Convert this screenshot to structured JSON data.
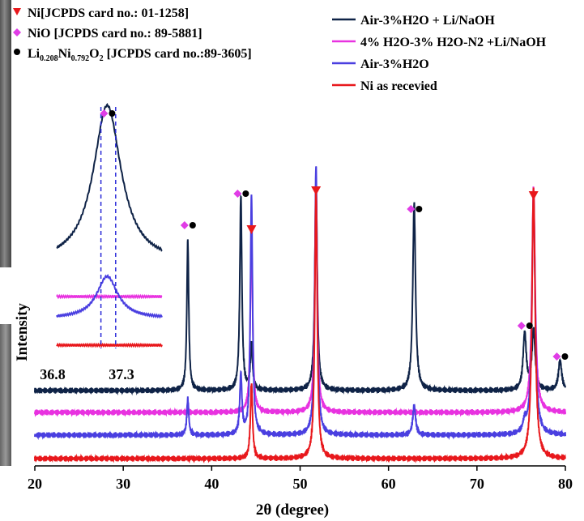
{
  "chart_data": {
    "type": "line",
    "title": "",
    "xlabel": "2θ (degree)",
    "ylabel": "Intensity",
    "xlim": [
      20,
      80
    ],
    "xticks": [
      20,
      30,
      40,
      50,
      60,
      70,
      80
    ],
    "grid": false,
    "legend": {
      "placement": "top-right",
      "entries": [
        {
          "label": "Air-3%H2O + Li/NaOH",
          "color": "#0f2347"
        },
        {
          "label": "4% H2O-3% H2O-N2 +Li/NaOH",
          "color": "#e832e0"
        },
        {
          "label": "Air-3%H2O",
          "color": "#4a3fe0"
        },
        {
          "label": "Ni as recevied",
          "color": "#e8181c"
        }
      ]
    },
    "phase_legend": [
      {
        "marker": "triangle",
        "color": "#e8181c",
        "text": "Ni[JCPDS card no.: 01-1258]"
      },
      {
        "marker": "diamond",
        "color": "#e03ce6",
        "text": "NiO [JCPDS card no.: 89-5881]"
      },
      {
        "marker": "dot",
        "color": "#000000",
        "formula": [
          "Li",
          "0.208",
          "Ni",
          "0.792",
          "O",
          "2"
        ],
        "card": " [JCPDS card no.:89-3605]"
      }
    ],
    "series": [
      {
        "name": "Air-3%H2O + Li/NaOH",
        "color": "#0f2347",
        "peaks": [
          [
            37.3,
            1.0
          ],
          [
            43.3,
            1.3
          ],
          [
            44.5,
            0.3
          ],
          [
            51.8,
            1.4
          ],
          [
            62.9,
            1.25
          ],
          [
            75.4,
            0.38
          ],
          [
            76.4,
            0.4
          ],
          [
            79.4,
            0.2
          ]
        ]
      },
      {
        "name": "4% H2O-3% H2O-N2 +Li/NaOH",
        "color": "#e832e0",
        "peaks": [
          [
            44.5,
            1.25
          ],
          [
            51.8,
            1.5
          ],
          [
            76.4,
            1.5
          ]
        ]
      },
      {
        "name": "Air-3%H2O",
        "color": "#4a3fe0",
        "peaks": [
          [
            37.3,
            0.24
          ],
          [
            43.3,
            0.4
          ],
          [
            44.5,
            1.6
          ],
          [
            51.8,
            1.8
          ],
          [
            62.9,
            0.2
          ],
          [
            75.4,
            0.07
          ],
          [
            76.4,
            1.6
          ]
        ]
      },
      {
        "name": "Ni as recevied",
        "color": "#e8181c",
        "peaks": [
          [
            44.5,
            0.5
          ],
          [
            51.8,
            1.8
          ],
          [
            76.4,
            1.8
          ]
        ]
      }
    ],
    "annotations": [
      {
        "x": 37.3,
        "markers": [
          "diamond",
          "dot"
        ]
      },
      {
        "x": 43.3,
        "markers": [
          "diamond",
          "dot"
        ]
      },
      {
        "x": 44.5,
        "markers": [
          "triangle"
        ]
      },
      {
        "x": 51.8,
        "markers": [
          "triangle"
        ]
      },
      {
        "x": 62.9,
        "markers": [
          "diamond",
          "dot"
        ]
      },
      {
        "x": 75.4,
        "markers": [
          "diamond",
          "dot"
        ]
      },
      {
        "x": 76.4,
        "markers": [
          "triangle"
        ]
      },
      {
        "x": 79.4,
        "markers": [
          "diamond",
          "dot"
        ]
      }
    ],
    "inset": {
      "xlim": [
        36.8,
        37.8
      ],
      "xtick_labels": [
        "36.8",
        "37.3"
      ],
      "peak_center": 37.28,
      "marked_positions": [
        37.22,
        37.36
      ],
      "markers": [
        "diamond",
        "dot"
      ]
    }
  }
}
